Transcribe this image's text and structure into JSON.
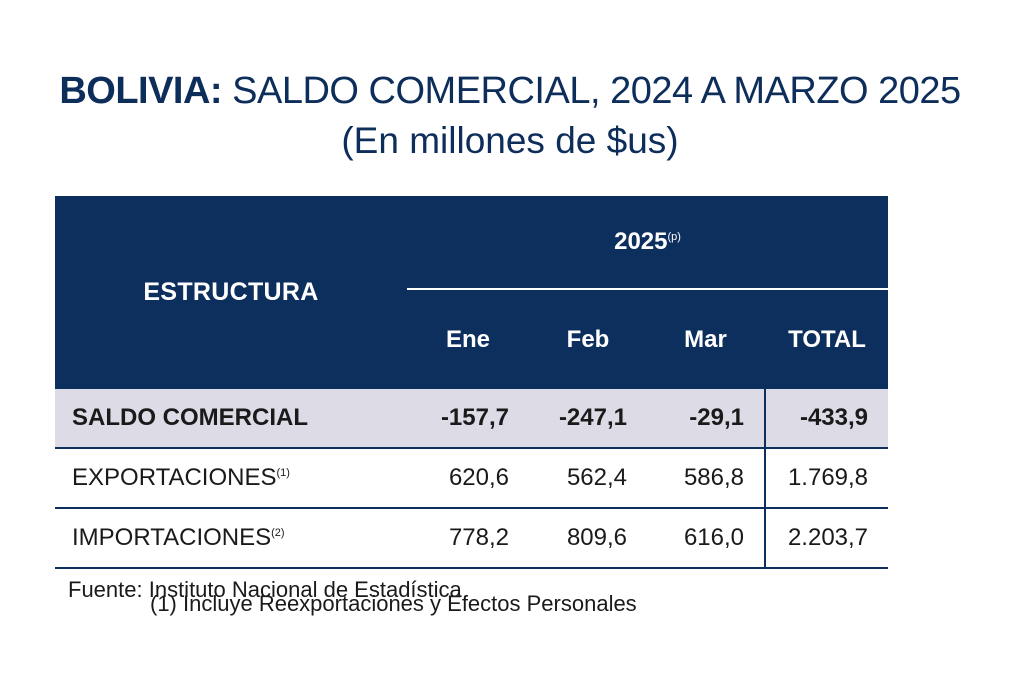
{
  "title": {
    "bold": "BOLIVIA:",
    "rest": " SALDO COMERCIAL, 2024 A MARZO 2025",
    "subtitle": "(En millones de $us)"
  },
  "table": {
    "structure_header": "ESTRUCTURA",
    "year_header": "2025",
    "year_note": "(p)",
    "columns": [
      "Ene",
      "Feb",
      "Mar",
      "TOTAL"
    ],
    "rows": [
      {
        "label": "SALDO COMERCIAL",
        "note": "",
        "values": [
          "-157,7",
          "-247,1",
          "-29,1",
          "-433,9"
        ]
      },
      {
        "label": "EXPORTACIONES",
        "note": "(1)",
        "values": [
          "620,6",
          "562,4",
          "586,8",
          "1.769,8"
        ]
      },
      {
        "label": "IMPORTACIONES",
        "note": "(2)",
        "values": [
          "778,2",
          "809,6",
          "616,0",
          "2.203,7"
        ]
      }
    ]
  },
  "source": "Fuente: Instituto Nacional de Estadística",
  "footnote_cut": "(1) Incluye Reexportaciones y Efectos Personales"
}
